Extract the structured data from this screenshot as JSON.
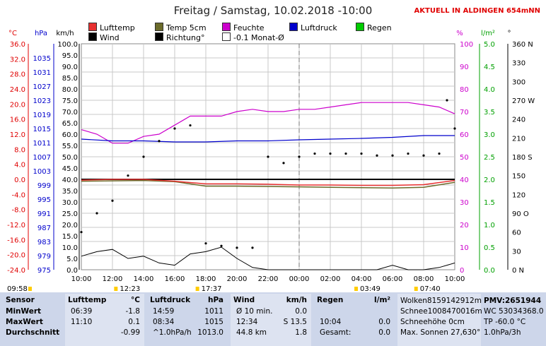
{
  "title": "Freitag / Samstag, 10.02.2018  -10:00",
  "subtitle": "AKTUELL IN ALDINGEN 654mNN",
  "colors": {
    "lufttemp": "#e83030",
    "temp5cm": "#6b6b2a",
    "feuchte": "#cc00cc",
    "luftdruck": "#0000cc",
    "regen": "#00cc00",
    "wind": "#000000",
    "richtung": "#000000"
  },
  "legend": [
    {
      "label": "Lufttemp",
      "color": "#e83030",
      "filled": true
    },
    {
      "label": "Temp 5cm",
      "color": "#6b6b2a",
      "filled": true
    },
    {
      "label": "Feuchte",
      "color": "#cc00cc",
      "filled": true
    },
    {
      "label": "Luftdruck",
      "color": "#0000cc",
      "filled": true
    },
    {
      "label": "Regen",
      "color": "#00cc00",
      "filled": true
    },
    {
      "label": "Wind",
      "color": "#000000",
      "filled": true
    },
    {
      "label": "Richtung°",
      "color": "#000000",
      "filled": true
    },
    {
      "label": "-0.1 Monat-Ø",
      "color": "#ffffff",
      "filled": false
    }
  ],
  "axis_units": {
    "temp": "°C",
    "press": "hPa",
    "wind": "km/h",
    "hum": "%",
    "rain": "l/m²",
    "dir": "°"
  },
  "axis_ticks": {
    "temp": [
      "36.0",
      "32.0",
      "28.0",
      "24.0",
      "20.0",
      "16.0",
      "12.0",
      "8.0",
      "4.0",
      "0.0",
      "-4.0",
      "-8.0",
      "-12.0",
      "-16.0",
      "-20.0",
      "-24.0"
    ],
    "press": [
      "",
      "1035",
      "1031",
      "1027",
      "1023",
      "1019",
      "1015",
      "1011",
      "1007",
      "1003",
      "999",
      "995",
      "991",
      "987",
      "983",
      "979",
      "975"
    ],
    "wind": [
      "100.0",
      "95.0",
      "90.0",
      "85.0",
      "80.0",
      "75.0",
      "70.0",
      "65.0",
      "60.0",
      "55.0",
      "50.0",
      "45.0",
      "40.0",
      "35.0",
      "30.0",
      "25.0",
      "20.0",
      "15.0",
      "10.0",
      "5.0",
      "0.0"
    ],
    "hum": [
      "100",
      "90",
      "80",
      "70",
      "60",
      "50",
      "40",
      "30",
      "20",
      "10",
      "0"
    ],
    "rain": [
      "5.0",
      "4.5",
      "4.0",
      "3.5",
      "3.0",
      "2.5",
      "2.0",
      "1.5",
      "1.0",
      "0.5",
      "0.0"
    ],
    "dir": [
      "360 N",
      "330",
      "300",
      "270 W",
      "240",
      "210",
      "180 S",
      "150",
      "120",
      "90 O",
      "60",
      "30",
      "0 N"
    ]
  },
  "x_ticks": [
    "10:00",
    "12:00",
    "14:00",
    "16:00",
    "18:00",
    "20:00",
    "22:00",
    "00:00",
    "02:00",
    "04:00",
    "06:00",
    "08:00",
    "10:00"
  ],
  "markers": [
    {
      "time": "09:58",
      "label": "09:58"
    },
    {
      "time": "12:23",
      "label": "12:23"
    },
    {
      "time": "17:37",
      "label": "17:37"
    },
    {
      "time": "03:49",
      "label": "03:49"
    },
    {
      "time": "07:40",
      "label": "07:40"
    }
  ],
  "chart_data": {
    "type": "line",
    "title": "Freitag / Samstag, 10.02.2018  -10:00",
    "x_range": [
      "10:00",
      "10:00"
    ],
    "series": [
      {
        "name": "Lufttemp",
        "unit": "°C",
        "hours": [
          0,
          2,
          4,
          6,
          8,
          10,
          12,
          14,
          16,
          18,
          20,
          22,
          24
        ],
        "values": [
          -0.2,
          0.0,
          0.0,
          -0.5,
          -1.2,
          -1.2,
          -1.3,
          -1.5,
          -1.5,
          -1.6,
          -1.6,
          -1.4,
          -0.3
        ]
      },
      {
        "name": "Temp 5cm",
        "unit": "°C",
        "hours": [
          0,
          2,
          4,
          6,
          8,
          10,
          12,
          14,
          16,
          18,
          20,
          22,
          24
        ],
        "values": [
          -0.5,
          -0.4,
          -0.3,
          -0.6,
          -1.8,
          -1.8,
          -1.9,
          -2.0,
          -2.1,
          -2.2,
          -2.3,
          -2.1,
          -0.8
        ]
      },
      {
        "name": "Feuchte",
        "unit": "%",
        "hours": [
          0,
          1,
          2,
          3,
          4,
          5,
          6,
          7,
          8,
          9,
          10,
          11,
          12,
          13,
          14,
          15,
          16,
          17,
          18,
          19,
          20,
          21,
          22,
          23,
          24
        ],
        "values": [
          62,
          60,
          56,
          56,
          59,
          60,
          64,
          68,
          68,
          68,
          70,
          71,
          70,
          70,
          71,
          71,
          72,
          73,
          74,
          74,
          74,
          74,
          73,
          72,
          69
        ]
      },
      {
        "name": "Luftdruck",
        "unit": "hPa",
        "hours": [
          0,
          2,
          4,
          6,
          8,
          10,
          12,
          14,
          16,
          18,
          20,
          22,
          24
        ],
        "values": [
          1012.0,
          1011.5,
          1011.5,
          1011.2,
          1011.2,
          1011.5,
          1011.5,
          1011.8,
          1012.0,
          1012.2,
          1012.5,
          1013.0,
          1013.0
        ]
      },
      {
        "name": "Richtung°",
        "unit": "°",
        "hours": [
          0,
          1,
          2,
          3,
          4,
          5,
          6,
          7,
          8,
          9,
          10,
          11,
          12,
          13,
          14,
          15,
          16,
          17,
          18,
          19,
          20,
          21,
          22,
          23,
          23.5,
          24
        ],
        "values": [
          60,
          90,
          110,
          150,
          180,
          205,
          225,
          230,
          42,
          38,
          35,
          35,
          180,
          170,
          180,
          185,
          185,
          185,
          185,
          182,
          182,
          185,
          182,
          185,
          270,
          225
        ]
      },
      {
        "name": "Wind",
        "unit": "km/h",
        "hours": [
          0,
          1,
          2,
          3,
          4,
          5,
          6,
          7,
          8,
          9,
          10,
          11,
          12,
          13,
          14,
          15,
          16,
          17,
          18,
          19,
          20,
          21,
          22,
          23,
          24
        ],
        "values": [
          6,
          8,
          9,
          5,
          6,
          3,
          2,
          7,
          8,
          10,
          5,
          1,
          0,
          0,
          0,
          0,
          0,
          0,
          0,
          0,
          2,
          0,
          0,
          1,
          3
        ]
      }
    ],
    "reference_lines": [
      {
        "name": "-0.1 Monat-Ø",
        "unit": "°C",
        "value": -0.1
      }
    ],
    "ylim": {
      "temp": [
        -24,
        36
      ],
      "wind": [
        0,
        100
      ],
      "hum": [
        0,
        100
      ],
      "press": [
        975,
        1039
      ],
      "rain": [
        0,
        5
      ],
      "dir": [
        0,
        360
      ]
    }
  },
  "footer": {
    "headers": [
      "Sensor",
      "Lufttemp",
      "°C",
      "Luftdruck",
      "hPa",
      "Wind",
      "km/h",
      "Regen",
      "l/m²"
    ],
    "col1": [
      "MinWert",
      "MaxWert",
      "Durchschnitt"
    ],
    "col2": [
      [
        "06:39",
        "-1.8"
      ],
      [
        "11:10",
        "0.1"
      ],
      [
        "",
        "-0.99"
      ]
    ],
    "col3": [
      [
        "14:59",
        "1011"
      ],
      [
        "08:34",
        "1015"
      ],
      [
        "^1.0hPa/h",
        "1013.0"
      ]
    ],
    "col4": [
      [
        "Ø 10 min.",
        "0.0"
      ],
      [
        "12:34",
        "S 13.5"
      ],
      [
        "44.8 km",
        "1.8"
      ]
    ],
    "col5": [
      [
        "",
        ""
      ],
      [
        "10:04",
        "0.0"
      ],
      [
        "Gesamt:",
        "0.0"
      ]
    ],
    "col6": [
      "Wolken8159142912m",
      "Schnee1008470016m",
      "Schneehöhe      0cm",
      "Max. Sonnen 27,630°"
    ],
    "col7": [
      "PMV:2651944",
      "WC 53034368.0",
      "TP -60.0 °C",
      "1.0hPa/3h"
    ]
  }
}
